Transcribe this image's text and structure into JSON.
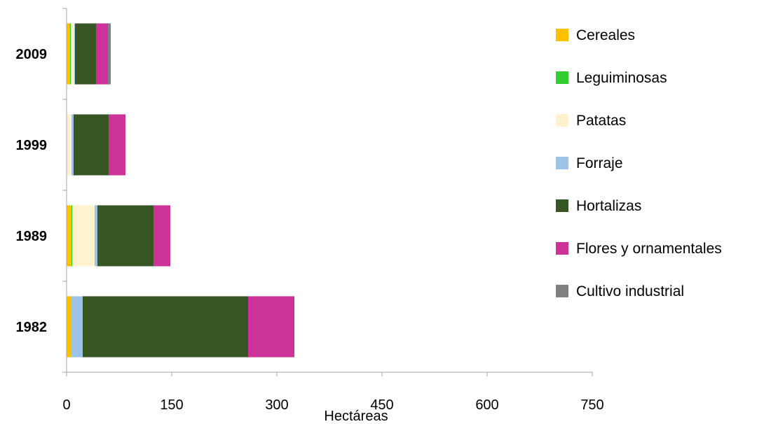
{
  "chart_data": {
    "type": "bar",
    "orientation": "horizontal",
    "stacked": true,
    "title": "",
    "xlabel": "Hectáreas",
    "ylabel": "",
    "categories": [
      "2009",
      "1999",
      "1989",
      "1982"
    ],
    "xlim": [
      0,
      750
    ],
    "xticks": [
      "0",
      "150",
      "300",
      "450",
      "600",
      "750"
    ],
    "grid": false,
    "legend_position": "right",
    "series": [
      {
        "name": "Cereales",
        "color": "#FFC000",
        "values": [
          5,
          0,
          7,
          7
        ]
      },
      {
        "name": "Leguiminosas",
        "color": "#33CC33",
        "values": [
          1,
          0,
          1,
          0
        ]
      },
      {
        "name": "Patatas",
        "color": "#FFF2CC",
        "values": [
          5,
          7,
          32,
          0
        ]
      },
      {
        "name": "Forraje",
        "color": "#9DC3E6",
        "values": [
          1,
          3,
          4,
          16
        ]
      },
      {
        "name": "Hortalizas",
        "color": "#375623",
        "values": [
          30,
          50,
          80,
          236
        ]
      },
      {
        "name": "Flores y ornamentales",
        "color": "#CC3399",
        "values": [
          17,
          24,
          24,
          66
        ]
      },
      {
        "name": "Cultivo industrial",
        "color": "#7F7F7F",
        "values": [
          4,
          0,
          0,
          0
        ]
      }
    ]
  }
}
